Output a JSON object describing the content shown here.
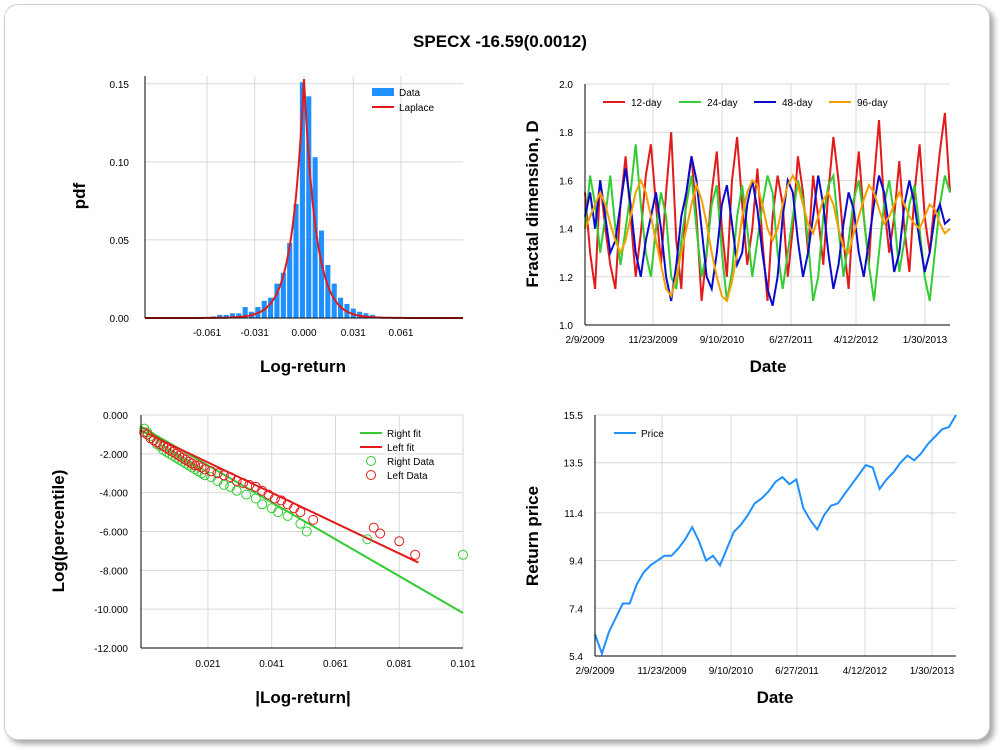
{
  "title": "SPECX -16.59(0.0012)",
  "colors": {
    "blue": "#1e90ff",
    "red": "#e31a1c",
    "green": "#33cc33",
    "darkblue": "#0a0acc",
    "orange": "#f5a000",
    "grid": "#d9d9d9"
  },
  "chart_data": [
    {
      "type": "bar",
      "id": "histogram",
      "xlabel": "Log-return",
      "ylabel": "pdf",
      "xticks": [
        "-0.061",
        "-0.031",
        "0.000",
        "0.031",
        "0.061"
      ],
      "xtick_values": [
        -0.061,
        -0.031,
        0.0,
        0.031,
        0.061
      ],
      "yticks": [
        "0.00",
        "0.05",
        "0.10",
        "0.15"
      ],
      "ytick_values": [
        0,
        0.05,
        0.1,
        0.15
      ],
      "xlim": [
        -0.1,
        0.1
      ],
      "ylim": [
        0,
        0.155
      ],
      "legend": [
        "Data",
        "Laplace"
      ],
      "bins": [
        -0.057,
        -0.053,
        -0.049,
        -0.045,
        -0.041,
        -0.037,
        -0.033,
        -0.029,
        -0.025,
        -0.021,
        -0.017,
        -0.013,
        -0.009,
        -0.005,
        -0.001,
        0.003,
        0.007,
        0.011,
        0.015,
        0.019,
        0.023,
        0.027,
        0.031,
        0.035,
        0.039,
        0.043,
        0.047
      ],
      "values": [
        0.001,
        0.002,
        0.002,
        0.003,
        0.003,
        0.007,
        0.004,
        0.007,
        0.011,
        0.013,
        0.022,
        0.029,
        0.048,
        0.073,
        0.151,
        0.142,
        0.103,
        0.056,
        0.034,
        0.022,
        0.013,
        0.009,
        0.006,
        0.004,
        0.003,
        0.002,
        0.001
      ],
      "laplace": {
        "mu": 0.0,
        "peak": 0.153,
        "scale": 0.0075
      }
    },
    {
      "type": "line",
      "id": "fractal",
      "xlabel": "Date",
      "ylabel": "Fractal dimension, D",
      "xticks": [
        "2/9/2009",
        "11/23/2009",
        "9/10/2010",
        "6/27/2011",
        "4/12/2012",
        "1/30/2013"
      ],
      "yticks": [
        "1.0",
        "1.2",
        "1.4",
        "1.6",
        "1.8",
        "2.0"
      ],
      "ytick_values": [
        1.0,
        1.2,
        1.4,
        1.6,
        1.8,
        2.0
      ],
      "ylim": [
        1.0,
        2.0
      ],
      "series": [
        {
          "name": "12-day",
          "values": [
            1.55,
            1.3,
            1.15,
            1.6,
            1.4,
            1.25,
            1.15,
            1.5,
            1.7,
            1.45,
            1.2,
            1.38,
            1.62,
            1.75,
            1.5,
            1.25,
            1.55,
            1.8,
            1.35,
            1.15,
            1.55,
            1.7,
            1.45,
            1.1,
            1.3,
            1.55,
            1.72,
            1.4,
            1.2,
            1.6,
            1.78,
            1.5,
            1.25,
            1.4,
            1.65,
            1.35,
            1.1,
            1.45,
            1.62,
            1.5,
            1.2,
            1.4,
            1.7,
            1.55,
            1.3,
            1.62,
            1.45,
            1.25,
            1.55,
            1.78,
            1.6,
            1.35,
            1.15,
            1.5,
            1.72,
            1.45,
            1.25,
            1.6,
            1.85,
            1.5,
            1.3,
            1.45,
            1.68,
            1.4,
            1.22,
            1.55,
            1.75,
            1.45,
            1.3,
            1.52,
            1.72,
            1.88,
            1.55
          ]
        },
        {
          "name": "24-day",
          "values": [
            1.4,
            1.62,
            1.5,
            1.3,
            1.45,
            1.62,
            1.4,
            1.25,
            1.4,
            1.55,
            1.75,
            1.5,
            1.3,
            1.2,
            1.4,
            1.55,
            1.45,
            1.2,
            1.15,
            1.35,
            1.5,
            1.62,
            1.4,
            1.2,
            1.3,
            1.5,
            1.58,
            1.3,
            1.1,
            1.22,
            1.45,
            1.58,
            1.4,
            1.2,
            1.35,
            1.5,
            1.62,
            1.55,
            1.3,
            1.15,
            1.3,
            1.45,
            1.6,
            1.52,
            1.35,
            1.1,
            1.2,
            1.45,
            1.58,
            1.62,
            1.4,
            1.2,
            1.35,
            1.52,
            1.6,
            1.45,
            1.25,
            1.1,
            1.3,
            1.5,
            1.6,
            1.45,
            1.22,
            1.35,
            1.5,
            1.58,
            1.4,
            1.2,
            1.1,
            1.3,
            1.5,
            1.62,
            1.55
          ]
        },
        {
          "name": "48-day",
          "values": [
            1.45,
            1.55,
            1.4,
            1.6,
            1.45,
            1.3,
            1.35,
            1.5,
            1.65,
            1.5,
            1.3,
            1.2,
            1.35,
            1.45,
            1.55,
            1.4,
            1.2,
            1.1,
            1.25,
            1.45,
            1.55,
            1.7,
            1.6,
            1.4,
            1.2,
            1.15,
            1.3,
            1.5,
            1.58,
            1.42,
            1.25,
            1.3,
            1.5,
            1.6,
            1.48,
            1.3,
            1.15,
            1.08,
            1.2,
            1.45,
            1.6,
            1.55,
            1.35,
            1.2,
            1.3,
            1.45,
            1.62,
            1.5,
            1.3,
            1.15,
            1.25,
            1.42,
            1.55,
            1.48,
            1.3,
            1.2,
            1.35,
            1.5,
            1.62,
            1.55,
            1.4,
            1.22,
            1.3,
            1.5,
            1.6,
            1.5,
            1.35,
            1.22,
            1.3,
            1.45,
            1.5,
            1.42,
            1.44
          ]
        },
        {
          "name": "96-day",
          "values": [
            1.4,
            1.45,
            1.5,
            1.55,
            1.5,
            1.42,
            1.35,
            1.3,
            1.35,
            1.45,
            1.55,
            1.6,
            1.55,
            1.45,
            1.35,
            1.25,
            1.15,
            1.12,
            1.2,
            1.3,
            1.4,
            1.5,
            1.58,
            1.52,
            1.42,
            1.3,
            1.2,
            1.12,
            1.1,
            1.18,
            1.3,
            1.45,
            1.55,
            1.6,
            1.58,
            1.5,
            1.4,
            1.35,
            1.4,
            1.5,
            1.58,
            1.62,
            1.58,
            1.5,
            1.42,
            1.38,
            1.45,
            1.52,
            1.55,
            1.5,
            1.4,
            1.32,
            1.3,
            1.38,
            1.45,
            1.52,
            1.58,
            1.55,
            1.48,
            1.42,
            1.45,
            1.5,
            1.55,
            1.5,
            1.45,
            1.42,
            1.4,
            1.45,
            1.5,
            1.48,
            1.42,
            1.38,
            1.4
          ]
        }
      ]
    },
    {
      "type": "scatter",
      "id": "tail",
      "xlabel": "|Log-return|",
      "ylabel": "Log(percentile)",
      "xticks": [
        "0.021",
        "0.041",
        "0.061",
        "0.081",
        "0.101"
      ],
      "xtick_values": [
        0.021,
        0.041,
        0.061,
        0.081,
        0.101
      ],
      "yticks": [
        "0.000",
        "-2.000",
        "-4.000",
        "-6.000",
        "-8.000",
        "-10.000",
        "-12.000"
      ],
      "ytick_values": [
        0,
        -2,
        -4,
        -6,
        -8,
        -10,
        -12
      ],
      "xlim": [
        0.0,
        0.101
      ],
      "ylim": [
        -12,
        0
      ],
      "legend": [
        "Right fit",
        "Left fit",
        "Right Data",
        "Left Data"
      ],
      "right_fit": {
        "x": [
          0.0,
          0.101
        ],
        "y": [
          -0.6,
          -10.2
        ]
      },
      "left_fit": {
        "x": [
          0.0,
          0.087
        ],
        "y": [
          -0.8,
          -7.6
        ]
      },
      "right_data": [
        [
          0.001,
          -0.7
        ],
        [
          0.002,
          -0.9
        ],
        [
          0.003,
          -1.1
        ],
        [
          0.004,
          -1.3
        ],
        [
          0.005,
          -1.5
        ],
        [
          0.006,
          -1.6
        ],
        [
          0.007,
          -1.8
        ],
        [
          0.008,
          -1.9
        ],
        [
          0.009,
          -2.0
        ],
        [
          0.01,
          -2.1
        ],
        [
          0.011,
          -2.2
        ],
        [
          0.012,
          -2.3
        ],
        [
          0.013,
          -2.4
        ],
        [
          0.014,
          -2.5
        ],
        [
          0.015,
          -2.6
        ],
        [
          0.016,
          -2.7
        ],
        [
          0.017,
          -2.8
        ],
        [
          0.018,
          -2.9
        ],
        [
          0.019,
          -3.0
        ],
        [
          0.02,
          -3.1
        ],
        [
          0.022,
          -3.2
        ],
        [
          0.024,
          -3.4
        ],
        [
          0.026,
          -3.6
        ],
        [
          0.028,
          -3.7
        ],
        [
          0.03,
          -3.9
        ],
        [
          0.033,
          -4.1
        ],
        [
          0.036,
          -4.3
        ],
        [
          0.038,
          -4.6
        ],
        [
          0.041,
          -4.8
        ],
        [
          0.043,
          -5.0
        ],
        [
          0.046,
          -5.2
        ],
        [
          0.05,
          -5.6
        ],
        [
          0.052,
          -6.0
        ],
        [
          0.071,
          -6.4
        ],
        [
          0.101,
          -7.2
        ]
      ],
      "left_data": [
        [
          0.001,
          -0.9
        ],
        [
          0.002,
          -1.0
        ],
        [
          0.003,
          -1.2
        ],
        [
          0.004,
          -1.3
        ],
        [
          0.005,
          -1.4
        ],
        [
          0.006,
          -1.5
        ],
        [
          0.007,
          -1.6
        ],
        [
          0.008,
          -1.7
        ],
        [
          0.009,
          -1.8
        ],
        [
          0.01,
          -1.9
        ],
        [
          0.011,
          -2.0
        ],
        [
          0.012,
          -2.1
        ],
        [
          0.013,
          -2.2
        ],
        [
          0.014,
          -2.3
        ],
        [
          0.015,
          -2.4
        ],
        [
          0.016,
          -2.5
        ],
        [
          0.017,
          -2.6
        ],
        [
          0.018,
          -2.6
        ],
        [
          0.019,
          -2.7
        ],
        [
          0.02,
          -2.8
        ],
        [
          0.022,
          -2.9
        ],
        [
          0.024,
          -3.0
        ],
        [
          0.026,
          -3.1
        ],
        [
          0.028,
          -3.2
        ],
        [
          0.03,
          -3.4
        ],
        [
          0.032,
          -3.5
        ],
        [
          0.034,
          -3.6
        ],
        [
          0.036,
          -3.7
        ],
        [
          0.038,
          -3.9
        ],
        [
          0.04,
          -4.1
        ],
        [
          0.042,
          -4.3
        ],
        [
          0.044,
          -4.4
        ],
        [
          0.046,
          -4.6
        ],
        [
          0.048,
          -4.8
        ],
        [
          0.05,
          -5.0
        ],
        [
          0.054,
          -5.4
        ],
        [
          0.073,
          -5.8
        ],
        [
          0.075,
          -6.1
        ],
        [
          0.081,
          -6.5
        ],
        [
          0.086,
          -7.2
        ]
      ]
    },
    {
      "type": "line",
      "id": "price",
      "xlabel": "Date",
      "ylabel": "Return price",
      "xticks": [
        "2/9/2009",
        "11/23/2009",
        "9/10/2010",
        "6/27/2011",
        "4/12/2012",
        "1/30/2013"
      ],
      "yticks": [
        "5.4",
        "7.4",
        "9.4",
        "11.4",
        "13.5",
        "15.5"
      ],
      "ytick_values": [
        5.4,
        7.4,
        9.4,
        11.4,
        13.5,
        15.5
      ],
      "ylim": [
        5.4,
        15.5
      ],
      "series": [
        {
          "name": "Price",
          "values": [
            6.3,
            5.5,
            6.4,
            7.0,
            7.6,
            7.6,
            8.4,
            8.9,
            9.2,
            9.4,
            9.6,
            9.6,
            9.9,
            10.3,
            10.8,
            10.2,
            9.4,
            9.6,
            9.2,
            9.9,
            10.6,
            10.9,
            11.3,
            11.8,
            12.0,
            12.3,
            12.7,
            12.9,
            12.6,
            12.8,
            11.6,
            11.1,
            10.7,
            11.3,
            11.7,
            11.8,
            12.2,
            12.6,
            13.0,
            13.4,
            13.3,
            12.4,
            12.8,
            13.1,
            13.5,
            13.8,
            13.6,
            13.9,
            14.3,
            14.6,
            14.9,
            15.0,
            15.5
          ]
        }
      ]
    }
  ]
}
